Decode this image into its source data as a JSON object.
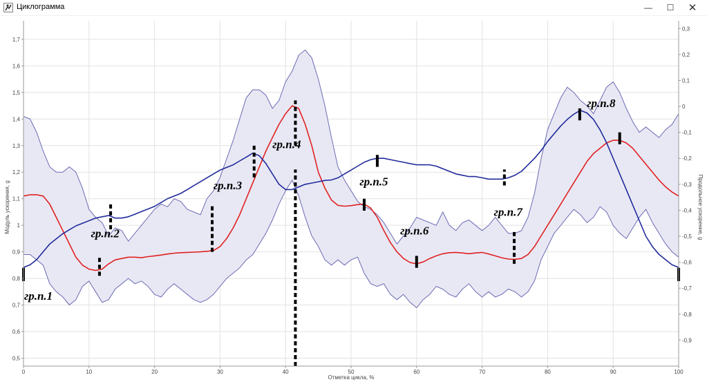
{
  "window": {
    "title": "Циклограмма"
  },
  "chart_data": {
    "type": "line",
    "xlabel": "Отметка цикла, %",
    "ylabel_left": "Модуль ускорения, g",
    "ylabel_right": "Продольное ускорение, g",
    "xlim": [
      0,
      100
    ],
    "ylim_left": [
      0.47,
      1.77
    ],
    "ylim_right": [
      -1.0,
      0.33
    ],
    "x_ticks": [
      0,
      10,
      20,
      30,
      40,
      50,
      60,
      70,
      80,
      90,
      100
    ],
    "y_ticks_left": [
      "0,5",
      "0,6",
      "0,7",
      "0,8",
      "0,9",
      "1",
      "1,1",
      "1,2",
      "1,3",
      "1,4",
      "1,5",
      "1,6",
      "1,7"
    ],
    "y_ticks_right": [
      "-0,9",
      "-0,8",
      "-0,7",
      "-0,6",
      "-0,5",
      "-0,4",
      "-0,3",
      "-0,2",
      "-0,1",
      "0",
      "0,1",
      "0,2",
      "0,3"
    ],
    "grid": true,
    "colors": {
      "red": "#e02020",
      "blue": "#1f2a9a",
      "band_fill": "#e8e8f4",
      "band_edge": "#6a6ab4",
      "grid": "#e2e2e2"
    },
    "series": [
      {
        "axis": "left",
        "x": [
          0,
          1,
          2,
          3,
          4,
          5,
          6,
          7,
          8,
          9,
          10,
          11,
          12,
          13,
          14,
          15,
          16,
          17,
          18,
          19,
          20,
          21,
          22,
          23,
          24,
          25,
          26,
          27,
          28,
          29,
          30,
          31,
          32,
          33,
          34,
          35,
          36,
          37,
          38,
          39,
          40,
          41,
          42,
          43,
          44,
          45,
          46,
          47,
          48,
          49,
          50,
          51,
          52,
          53,
          54,
          55,
          56,
          57,
          58,
          59,
          60,
          61,
          62,
          63,
          64,
          65,
          66,
          67,
          68,
          69,
          70,
          71,
          72,
          73,
          74,
          75,
          76,
          77,
          78,
          79,
          80,
          81,
          82,
          83,
          84,
          85,
          86,
          87,
          88,
          89,
          90,
          91,
          92,
          93,
          94,
          95,
          96,
          97,
          98,
          99,
          100
        ],
        "values": [
          1.11,
          1.115,
          1.115,
          1.11,
          1.08,
          1.03,
          0.98,
          0.93,
          0.88,
          0.85,
          0.835,
          0.83,
          0.835,
          0.855,
          0.87,
          0.875,
          0.88,
          0.88,
          0.878,
          0.882,
          0.885,
          0.888,
          0.892,
          0.895,
          0.897,
          0.898,
          0.899,
          0.9,
          0.902,
          0.905,
          0.92,
          0.95,
          0.99,
          1.04,
          1.1,
          1.16,
          1.22,
          1.28,
          1.33,
          1.38,
          1.42,
          1.45,
          1.44,
          1.38,
          1.3,
          1.2,
          1.14,
          1.095,
          1.075,
          1.072,
          1.074,
          1.078,
          1.08,
          1.065,
          1.03,
          0.98,
          0.935,
          0.9,
          0.875,
          0.86,
          0.855,
          0.862,
          0.875,
          0.885,
          0.893,
          0.897,
          0.898,
          0.896,
          0.893,
          0.896,
          0.898,
          0.892,
          0.885,
          0.878,
          0.873,
          0.872,
          0.875,
          0.89,
          0.92,
          0.96,
          1.0,
          1.04,
          1.08,
          1.12,
          1.16,
          1.2,
          1.24,
          1.27,
          1.29,
          1.31,
          1.32,
          1.32,
          1.31,
          1.29,
          1.26,
          1.23,
          1.2,
          1.17,
          1.145,
          1.125,
          1.11
        ]
      },
      {
        "axis": "right",
        "x": [
          0,
          1,
          2,
          3,
          4,
          5,
          6,
          7,
          8,
          9,
          10,
          11,
          12,
          13,
          14,
          15,
          16,
          17,
          18,
          19,
          20,
          21,
          22,
          23,
          24,
          25,
          26,
          27,
          28,
          29,
          30,
          31,
          32,
          33,
          34,
          35,
          36,
          37,
          38,
          39,
          40,
          41,
          42,
          43,
          44,
          45,
          46,
          47,
          48,
          49,
          50,
          51,
          52,
          53,
          54,
          55,
          56,
          57,
          58,
          59,
          60,
          61,
          62,
          63,
          64,
          65,
          66,
          67,
          68,
          69,
          70,
          71,
          72,
          73,
          74,
          75,
          76,
          77,
          78,
          79,
          80,
          81,
          82,
          83,
          84,
          85,
          86,
          87,
          88,
          89,
          90,
          91,
          92,
          93,
          94,
          95,
          96,
          97,
          98,
          99,
          100
        ],
        "values": [
          -0.62,
          -0.61,
          -0.59,
          -0.56,
          -0.53,
          -0.51,
          -0.49,
          -0.475,
          -0.46,
          -0.45,
          -0.44,
          -0.43,
          -0.425,
          -0.42,
          -0.43,
          -0.43,
          -0.425,
          -0.415,
          -0.405,
          -0.395,
          -0.385,
          -0.37,
          -0.355,
          -0.345,
          -0.335,
          -0.32,
          -0.305,
          -0.29,
          -0.275,
          -0.26,
          -0.245,
          -0.235,
          -0.225,
          -0.21,
          -0.195,
          -0.18,
          -0.19,
          -0.22,
          -0.26,
          -0.3,
          -0.32,
          -0.32,
          -0.31,
          -0.3,
          -0.295,
          -0.29,
          -0.285,
          -0.283,
          -0.275,
          -0.26,
          -0.245,
          -0.23,
          -0.215,
          -0.205,
          -0.2,
          -0.2,
          -0.205,
          -0.21,
          -0.215,
          -0.22,
          -0.225,
          -0.225,
          -0.225,
          -0.23,
          -0.24,
          -0.25,
          -0.26,
          -0.265,
          -0.27,
          -0.27,
          -0.275,
          -0.28,
          -0.28,
          -0.28,
          -0.275,
          -0.265,
          -0.25,
          -0.225,
          -0.2,
          -0.17,
          -0.135,
          -0.105,
          -0.075,
          -0.05,
          -0.03,
          -0.015,
          -0.025,
          -0.05,
          -0.09,
          -0.14,
          -0.2,
          -0.26,
          -0.32,
          -0.38,
          -0.44,
          -0.5,
          -0.54,
          -0.57,
          -0.59,
          -0.61,
          -0.62
        ]
      }
    ],
    "band": {
      "axis": "left",
      "x": [
        0,
        1,
        2,
        3,
        4,
        5,
        6,
        7,
        8,
        9,
        10,
        11,
        12,
        13,
        14,
        15,
        16,
        17,
        18,
        19,
        20,
        21,
        22,
        23,
        24,
        25,
        26,
        27,
        28,
        29,
        30,
        31,
        32,
        33,
        34,
        35,
        36,
        37,
        38,
        39,
        40,
        41,
        42,
        43,
        44,
        45,
        46,
        47,
        48,
        49,
        50,
        51,
        52,
        53,
        54,
        55,
        56,
        57,
        58,
        59,
        60,
        61,
        62,
        63,
        64,
        65,
        66,
        67,
        68,
        69,
        70,
        71,
        72,
        73,
        74,
        75,
        76,
        77,
        78,
        79,
        80,
        81,
        82,
        83,
        84,
        85,
        86,
        87,
        88,
        89,
        90,
        91,
        92,
        93,
        94,
        95,
        96,
        97,
        98,
        99,
        100
      ],
      "upper": [
        1.41,
        1.4,
        1.35,
        1.28,
        1.22,
        1.2,
        1.2,
        1.22,
        1.2,
        1.14,
        1.06,
        1.03,
        1.01,
        0.96,
        0.99,
        0.98,
        0.94,
        0.97,
        1.0,
        1.03,
        1.06,
        1.08,
        1.07,
        1.1,
        1.09,
        1.06,
        1.05,
        1.04,
        1.1,
        1.13,
        1.18,
        1.25,
        1.32,
        1.4,
        1.48,
        1.51,
        1.51,
        1.49,
        1.44,
        1.47,
        1.54,
        1.58,
        1.64,
        1.66,
        1.63,
        1.55,
        1.45,
        1.33,
        1.22,
        1.17,
        1.13,
        1.09,
        1.07,
        1.06,
        1.04,
        1.01,
        0.97,
        0.93,
        0.96,
        0.99,
        1.03,
        1.02,
        1.01,
        1.0,
        1.05,
        1.0,
        0.98,
        1.01,
        1.02,
        1.0,
        0.98,
        1.0,
        1.03,
        1.0,
        0.97,
        0.97,
        0.98,
        1.03,
        1.12,
        1.25,
        1.36,
        1.42,
        1.48,
        1.52,
        1.5,
        1.47,
        1.45,
        1.42,
        1.47,
        1.52,
        1.54,
        1.5,
        1.44,
        1.39,
        1.35,
        1.37,
        1.35,
        1.33,
        1.36,
        1.38,
        1.42
      ],
      "lower": [
        0.89,
        0.89,
        0.87,
        0.85,
        0.78,
        0.75,
        0.73,
        0.7,
        0.72,
        0.77,
        0.79,
        0.75,
        0.71,
        0.72,
        0.76,
        0.78,
        0.8,
        0.78,
        0.79,
        0.77,
        0.74,
        0.73,
        0.76,
        0.78,
        0.76,
        0.74,
        0.72,
        0.71,
        0.72,
        0.74,
        0.77,
        0.8,
        0.82,
        0.84,
        0.87,
        0.89,
        0.93,
        0.97,
        1.02,
        1.08,
        1.13,
        1.17,
        1.11,
        1.03,
        0.96,
        0.92,
        0.87,
        0.85,
        0.87,
        0.85,
        0.87,
        0.88,
        0.82,
        0.78,
        0.77,
        0.78,
        0.74,
        0.72,
        0.74,
        0.71,
        0.69,
        0.72,
        0.74,
        0.77,
        0.76,
        0.74,
        0.73,
        0.76,
        0.78,
        0.75,
        0.73,
        0.75,
        0.73,
        0.74,
        0.76,
        0.75,
        0.73,
        0.75,
        0.79,
        0.87,
        0.92,
        0.97,
        1.0,
        1.03,
        1.06,
        1.04,
        1.01,
        1.03,
        1.07,
        1.05,
        1.0,
        0.97,
        0.95,
        0.99,
        1.03,
        1.06,
        1.01,
        0.97,
        0.93,
        0.9,
        0.88
      ]
    },
    "annotations": [
      {
        "text": "гр.п.1",
        "x": 0.1,
        "y": 0.72
      },
      {
        "text": "гр.п.2",
        "x": 10.3,
        "y": 0.955
      },
      {
        "text": "гр.п.3",
        "x": 29.0,
        "y": 1.135
      },
      {
        "text": "гр.п.4",
        "x": 38.0,
        "y": 1.29
      },
      {
        "text": "гр.п.5",
        "x": 51.3,
        "y": 1.15
      },
      {
        "text": "гр.п.6",
        "x": 57.5,
        "y": 0.965
      },
      {
        "text": "гр.п.7",
        "x": 71.8,
        "y": 1.035
      },
      {
        "text": "гр.п.8",
        "x": 86.0,
        "y": 1.445
      }
    ],
    "phase_markers": [
      {
        "x": 0,
        "y1": 0.79,
        "y2": 0.84,
        "style": "solid"
      },
      {
        "x": 11.6,
        "y1": 0.81,
        "y2": 0.88,
        "style": "dashed"
      },
      {
        "x": 13.3,
        "y1": 0.985,
        "y2": 1.08,
        "style": "dashed"
      },
      {
        "x": 28.8,
        "y1": 0.9,
        "y2": 1.075,
        "style": "dashed"
      },
      {
        "x": 35.2,
        "y1": 1.18,
        "y2": 1.3,
        "style": "dashed"
      },
      {
        "x": 41.5,
        "y1": 1.3,
        "y2": 1.47,
        "style": "dashed"
      },
      {
        "x": 41.5,
        "y1": 0.47,
        "y2": 1.21,
        "style": "dashed"
      },
      {
        "x": 52.0,
        "y1": 1.055,
        "y2": 1.1,
        "style": "solid"
      },
      {
        "x": 54.0,
        "y1": 1.22,
        "y2": 1.265,
        "style": "solid"
      },
      {
        "x": 60.0,
        "y1": 0.84,
        "y2": 0.885,
        "style": "solid"
      },
      {
        "x": 73.4,
        "y1": 1.15,
        "y2": 1.21,
        "style": "dashed"
      },
      {
        "x": 74.9,
        "y1": 0.855,
        "y2": 0.985,
        "style": "dashed"
      },
      {
        "x": 84.9,
        "y1": 1.395,
        "y2": 1.44,
        "style": "solid"
      },
      {
        "x": 91.0,
        "y1": 1.305,
        "y2": 1.35,
        "style": "solid"
      },
      {
        "x": 100,
        "y1": 0.79,
        "y2": 0.84,
        "style": "solid"
      }
    ]
  }
}
